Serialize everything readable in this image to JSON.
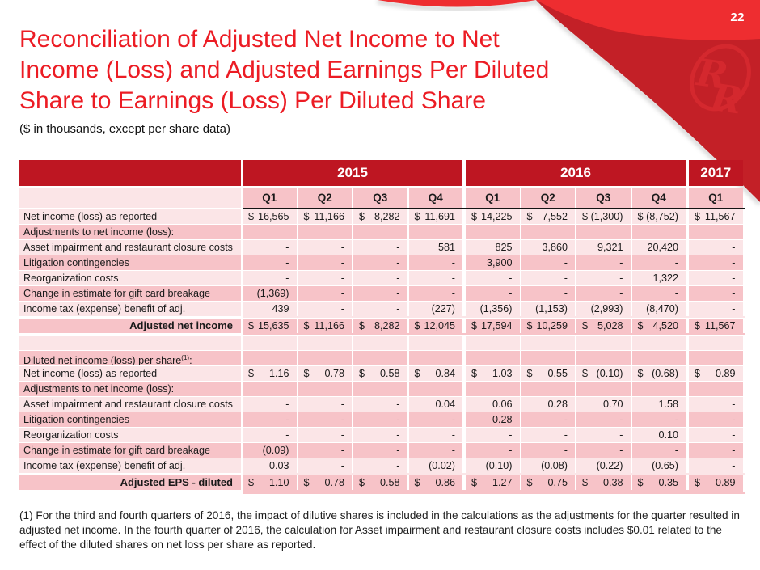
{
  "page_number": "22",
  "header": {
    "title_lines": [
      "Reconciliation of Adjusted Net Income to Net",
      "Income (Loss) and Adjusted Earnings Per Diluted",
      "Share to Earnings (Loss) Per Diluted Share"
    ],
    "subtitle": "($ in thousands, except per share data)",
    "logo_monogram": "RR"
  },
  "colors": {
    "accent_bright_red": "#EE2D30",
    "accent_dark_red": "#C32027",
    "table_header_red": "#BE1622",
    "row_pink_light": "#FBE5E7",
    "row_pink_medium": "#F7C3C8",
    "title_red": "#EC1C24",
    "logo_red": "#D4282E",
    "rule_black": "#141414",
    "text_dark": "#1A1A1A"
  },
  "table": {
    "year_groups": [
      {
        "label": "2015",
        "span": 4
      },
      {
        "label": "2016",
        "span": 4
      },
      {
        "label": "2017",
        "span": 1
      }
    ],
    "quarters": [
      "Q1",
      "Q2",
      "Q3",
      "Q4",
      "Q1",
      "Q2",
      "Q3",
      "Q4",
      "Q1"
    ],
    "rows": [
      {
        "label": "Net income (loss) as reported",
        "dollar": true,
        "values": [
          "16,565",
          "11,166",
          "8,282",
          "11,691",
          "14,225",
          "7,552",
          "(1,300)",
          "(8,752)",
          "11,567"
        ]
      },
      {
        "label": "Adjustments to net income (loss):",
        "values": [
          "",
          "",
          "",
          "",
          "",
          "",
          "",
          "",
          ""
        ]
      },
      {
        "label": "Asset impairment and restaurant closure costs",
        "values": [
          "-",
          "-",
          "-",
          "581",
          "825",
          "3,860",
          "9,321",
          "20,420",
          "-"
        ]
      },
      {
        "label": "Litigation contingencies",
        "values": [
          "-",
          "-",
          "-",
          "-",
          "3,900",
          "-",
          "-",
          "-",
          "-"
        ]
      },
      {
        "label": "Reorganization costs",
        "values": [
          "-",
          "-",
          "-",
          "-",
          "-",
          "-",
          "-",
          "1,322",
          "-"
        ]
      },
      {
        "label": "Change in estimate for gift card breakage",
        "values": [
          "(1,369)",
          "-",
          "-",
          "-",
          "-",
          "-",
          "-",
          "-",
          "-"
        ]
      },
      {
        "label": "Income tax (expense) benefit of adj.",
        "rule_below": true,
        "values": [
          "439",
          "-",
          "-",
          "(227)",
          "(1,356)",
          "(1,153)",
          "(2,993)",
          "(8,470)",
          "-"
        ]
      },
      {
        "label": "Adjusted net income",
        "bold": true,
        "dollar": true,
        "rule_below": true,
        "values": [
          "15,635",
          "11,166",
          "8,282",
          "12,045",
          "17,594",
          "10,259",
          "5,028",
          "4,520",
          "11,567"
        ]
      },
      {
        "label": "",
        "values": [
          "",
          "",
          "",
          "",
          "",
          "",
          "",
          "",
          ""
        ]
      },
      {
        "label": "Diluted net income (loss) per share",
        "sup": "(1)",
        "suffix": ":",
        "values": [
          "",
          "",
          "",
          "",
          "",
          "",
          "",
          "",
          ""
        ]
      },
      {
        "label": "Net income (loss) as reported",
        "dollar": true,
        "values": [
          "1.16",
          "0.78",
          "0.58",
          "0.84",
          "1.03",
          "0.55",
          "(0.10)",
          "(0.68)",
          "0.89"
        ]
      },
      {
        "label": "Adjustments to net income (loss):",
        "values": [
          "",
          "",
          "",
          "",
          "",
          "",
          "",
          "",
          ""
        ]
      },
      {
        "label": "Asset impairment and restaurant closure costs",
        "values": [
          "-",
          "-",
          "-",
          "0.04",
          "0.06",
          "0.28",
          "0.70",
          "1.58",
          "-"
        ]
      },
      {
        "label": "Litigation contingencies",
        "values": [
          "-",
          "-",
          "-",
          "-",
          "0.28",
          "-",
          "-",
          "-",
          "-"
        ]
      },
      {
        "label": "Reorganization costs",
        "values": [
          "-",
          "-",
          "-",
          "-",
          "-",
          "-",
          "-",
          "0.10",
          "-"
        ]
      },
      {
        "label": "Change in estimate for gift card breakage",
        "values": [
          "(0.09)",
          "-",
          "-",
          "-",
          "-",
          "-",
          "-",
          "-",
          "-"
        ]
      },
      {
        "label": "Income tax (expense) benefit of adj.",
        "rule_below": true,
        "values": [
          "0.03",
          "-",
          "-",
          "(0.02)",
          "(0.10)",
          "(0.08)",
          "(0.22)",
          "(0.65)",
          "-"
        ]
      },
      {
        "label": "Adjusted EPS - diluted",
        "bold": true,
        "dollar": true,
        "double_rule_below": true,
        "values": [
          "1.10",
          "0.78",
          "0.58",
          "0.86",
          "1.27",
          "0.75",
          "0.38",
          "0.35",
          "0.89"
        ]
      }
    ]
  },
  "footnote": "(1) For the third and fourth quarters of 2016, the impact of dilutive shares is included in the calculations as the adjustments for the quarter resulted in adjusted net income. In the fourth quarter of 2016, the calculation for Asset impairment and restaurant closure costs includes $0.01 related to the effect of the diluted shares on net loss per share as reported."
}
